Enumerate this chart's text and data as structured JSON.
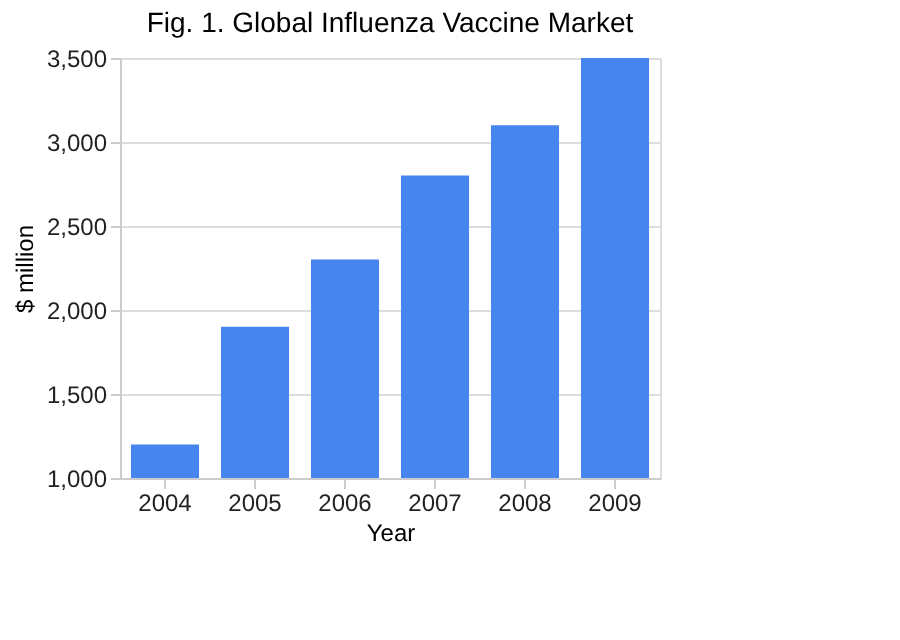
{
  "chart_data": {
    "type": "bar",
    "title": "Fig. 1. Global Influenza Vaccine Market",
    "xlabel": "Year",
    "ylabel": "$ million",
    "categories": [
      "2004",
      "2005",
      "2006",
      "2007",
      "2008",
      "2009"
    ],
    "series": [
      {
        "color": "#4684ee",
        "values": [
          1200,
          1900,
          2300,
          2800,
          3100,
          3500
        ]
      }
    ],
    "ylim": [
      1000,
      3500
    ],
    "yticks": [
      {
        "value": 1000,
        "label": "1,000"
      },
      {
        "value": 1500,
        "label": "1,500"
      },
      {
        "value": 2000,
        "label": "2,000"
      },
      {
        "value": 2500,
        "label": "2,500"
      },
      {
        "value": 3000,
        "label": "3,000"
      },
      {
        "value": 3500,
        "label": "3,500"
      }
    ],
    "grid": "y"
  }
}
